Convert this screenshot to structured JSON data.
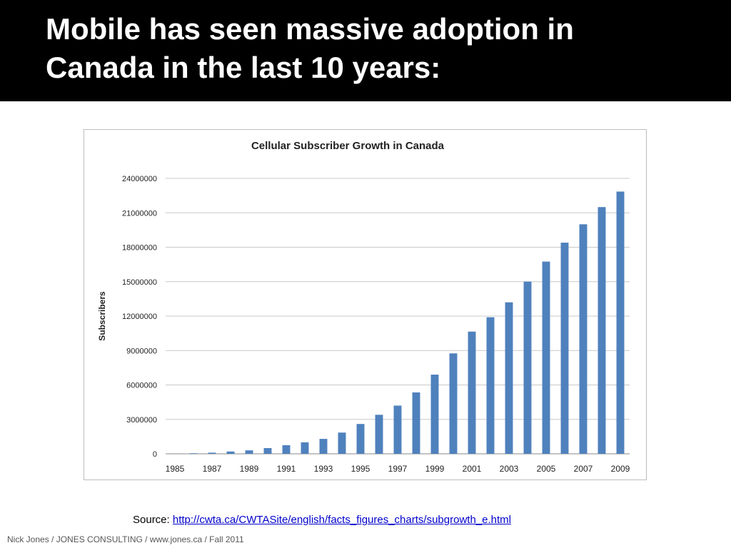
{
  "slide": {
    "title_line1": "Mobile has seen massive adoption in",
    "title_line2": "Canada in the last 10 years:",
    "source_label": "Source:",
    "source_url": "http://cwta.ca/CWTASite/english/facts_figures_charts/subgrowth_e.html",
    "footer": "Nick Jones / JONES CONSULTING / www.jones.ca / Fall 2011"
  },
  "colors": {
    "bar": "#4f81bd",
    "header_bg": "#000000",
    "link": "#0000cc"
  },
  "chart_data": {
    "type": "bar",
    "title": "Cellular Subscriber Growth in Canada",
    "xlabel": "",
    "ylabel": "Subscribers",
    "ylim": [
      0,
      24000000
    ],
    "yticks": [
      0,
      3000000,
      6000000,
      9000000,
      12000000,
      15000000,
      18000000,
      21000000,
      24000000
    ],
    "ytick_labels": [
      "0",
      "3000000",
      "6000000",
      "9000000",
      "12000000",
      "15000000",
      "18000000",
      "21000000",
      "24000000"
    ],
    "xtick_labels": [
      "1985",
      "1987",
      "1989",
      "1991",
      "1993",
      "1995",
      "1997",
      "1999",
      "2001",
      "2003",
      "2005",
      "2007",
      "2009"
    ],
    "categories": [
      "1985",
      "1986",
      "1987",
      "1988",
      "1989",
      "1990",
      "1991",
      "1992",
      "1993",
      "1994",
      "1995",
      "1996",
      "1997",
      "1998",
      "1999",
      "2000",
      "2001",
      "2002",
      "2003",
      "2004",
      "2005",
      "2006",
      "2007",
      "2008",
      "2009"
    ],
    "values": [
      6000,
      50000,
      100000,
      200000,
      300000,
      500000,
      750000,
      1000000,
      1300000,
      1850000,
      2600000,
      3400000,
      4200000,
      5350000,
      6900000,
      8750000,
      10650000,
      11900000,
      13200000,
      15000000,
      16750000,
      18400000,
      20000000,
      21500000,
      22850000
    ],
    "grid": true,
    "legend": "none"
  }
}
